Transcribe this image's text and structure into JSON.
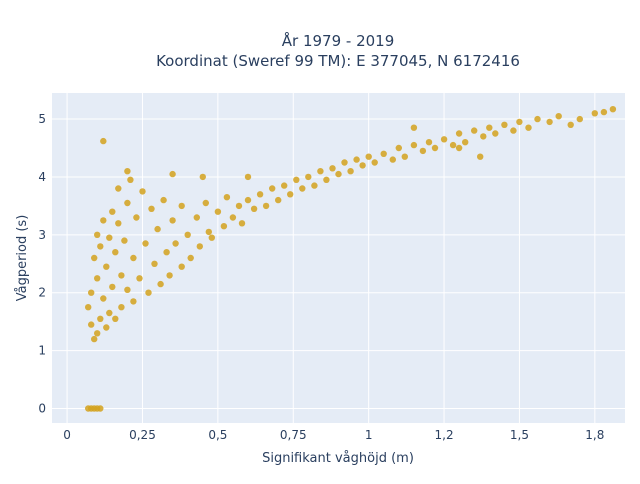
{
  "chart_data": {
    "type": "scatter",
    "title": "År 1979 - 2019",
    "subtitle": "Koordinat (Sweref 99 TM): E 377045, N 6172416",
    "xlabel": "Signifikant våghöjd (m)",
    "ylabel": "Vågperiod (s)",
    "xlim": [
      -0.05,
      1.85
    ],
    "ylim": [
      -0.25,
      5.45
    ],
    "x_ticks": [
      0,
      0.25,
      0.5,
      0.75,
      1,
      1.25,
      1.5,
      1.75
    ],
    "x_tick_labels": [
      "0",
      "0,25",
      "0,5",
      "0,75",
      "1",
      "1,2",
      "1,5",
      "1,8"
    ],
    "y_ticks": [
      0,
      1,
      2,
      3,
      4,
      5
    ],
    "y_tick_labels": [
      "0",
      "1",
      "2",
      "3",
      "4",
      "5"
    ],
    "grid": true,
    "legend": "none",
    "colors": {
      "marker": "#d4a21d",
      "plot_bg": "#e5ecf6",
      "grid": "#ffffff",
      "text": "#2a3f5f"
    },
    "series": [
      {
        "points": [
          [
            0.07,
            1.75
          ],
          [
            0.08,
            1.45
          ],
          [
            0.08,
            2.0
          ],
          [
            0.09,
            1.2
          ],
          [
            0.09,
            2.6
          ],
          [
            0.1,
            1.3
          ],
          [
            0.1,
            2.25
          ],
          [
            0.1,
            3.0
          ],
          [
            0.11,
            1.55
          ],
          [
            0.11,
            2.8
          ],
          [
            0.12,
            1.9
          ],
          [
            0.12,
            3.25
          ],
          [
            0.13,
            1.4
          ],
          [
            0.13,
            2.45
          ],
          [
            0.14,
            2.95
          ],
          [
            0.14,
            1.65
          ],
          [
            0.15,
            3.4
          ],
          [
            0.15,
            2.1
          ],
          [
            0.16,
            2.7
          ],
          [
            0.16,
            1.55
          ],
          [
            0.17,
            3.2
          ],
          [
            0.17,
            3.8
          ],
          [
            0.18,
            2.3
          ],
          [
            0.18,
            1.75
          ],
          [
            0.19,
            2.9
          ],
          [
            0.2,
            3.55
          ],
          [
            0.2,
            2.05
          ],
          [
            0.21,
            3.95
          ],
          [
            0.22,
            2.6
          ],
          [
            0.22,
            1.85
          ],
          [
            0.23,
            3.3
          ],
          [
            0.24,
            2.25
          ],
          [
            0.25,
            3.75
          ],
          [
            0.26,
            2.85
          ],
          [
            0.27,
            2.0
          ],
          [
            0.28,
            3.45
          ],
          [
            0.29,
            2.5
          ],
          [
            0.3,
            3.1
          ],
          [
            0.31,
            2.15
          ],
          [
            0.32,
            3.6
          ],
          [
            0.33,
            2.7
          ],
          [
            0.34,
            2.3
          ],
          [
            0.35,
            3.25
          ],
          [
            0.36,
            2.85
          ],
          [
            0.38,
            2.45
          ],
          [
            0.38,
            3.5
          ],
          [
            0.4,
            3.0
          ],
          [
            0.41,
            2.6
          ],
          [
            0.43,
            3.3
          ],
          [
            0.44,
            2.8
          ],
          [
            0.46,
            3.55
          ],
          [
            0.47,
            3.05
          ],
          [
            0.48,
            2.95
          ],
          [
            0.5,
            3.4
          ],
          [
            0.52,
            3.15
          ],
          [
            0.53,
            3.65
          ],
          [
            0.55,
            3.3
          ],
          [
            0.57,
            3.5
          ],
          [
            0.58,
            3.2
          ],
          [
            0.6,
            3.6
          ],
          [
            0.62,
            3.45
          ],
          [
            0.64,
            3.7
          ],
          [
            0.66,
            3.5
          ],
          [
            0.68,
            3.8
          ],
          [
            0.7,
            3.6
          ],
          [
            0.72,
            3.85
          ],
          [
            0.74,
            3.7
          ],
          [
            0.76,
            3.95
          ],
          [
            0.78,
            3.8
          ],
          [
            0.8,
            4.0
          ],
          [
            0.82,
            3.85
          ],
          [
            0.84,
            4.1
          ],
          [
            0.86,
            3.95
          ],
          [
            0.88,
            4.15
          ],
          [
            0.9,
            4.05
          ],
          [
            0.92,
            4.25
          ],
          [
            0.94,
            4.1
          ],
          [
            0.96,
            4.3
          ],
          [
            0.98,
            4.2
          ],
          [
            1.0,
            4.35
          ],
          [
            1.02,
            4.25
          ],
          [
            1.05,
            4.4
          ],
          [
            1.08,
            4.3
          ],
          [
            1.1,
            4.5
          ],
          [
            1.12,
            4.35
          ],
          [
            1.15,
            4.55
          ],
          [
            1.18,
            4.45
          ],
          [
            1.2,
            4.6
          ],
          [
            1.22,
            4.5
          ],
          [
            1.25,
            4.65
          ],
          [
            1.28,
            4.55
          ],
          [
            1.3,
            4.75
          ],
          [
            1.32,
            4.6
          ],
          [
            1.35,
            4.8
          ],
          [
            1.38,
            4.7
          ],
          [
            1.4,
            4.85
          ],
          [
            1.42,
            4.75
          ],
          [
            1.45,
            4.9
          ],
          [
            1.48,
            4.8
          ],
          [
            1.5,
            4.95
          ],
          [
            1.53,
            4.85
          ],
          [
            1.56,
            5.0
          ],
          [
            1.6,
            4.95
          ],
          [
            1.63,
            5.05
          ],
          [
            1.67,
            4.9
          ],
          [
            1.7,
            5.0
          ],
          [
            1.75,
            5.1
          ],
          [
            1.78,
            5.12
          ],
          [
            1.81,
            5.17
          ],
          [
            0.12,
            4.62
          ],
          [
            0.2,
            4.1
          ],
          [
            0.35,
            4.05
          ],
          [
            0.45,
            4.0
          ],
          [
            0.6,
            4.0
          ],
          [
            1.15,
            4.85
          ],
          [
            1.37,
            4.35
          ],
          [
            1.3,
            4.5
          ],
          [
            0.07,
            0.0
          ],
          [
            0.08,
            0.0
          ],
          [
            0.09,
            0.0
          ],
          [
            0.1,
            0.0
          ],
          [
            0.11,
            0.0
          ]
        ]
      }
    ]
  }
}
